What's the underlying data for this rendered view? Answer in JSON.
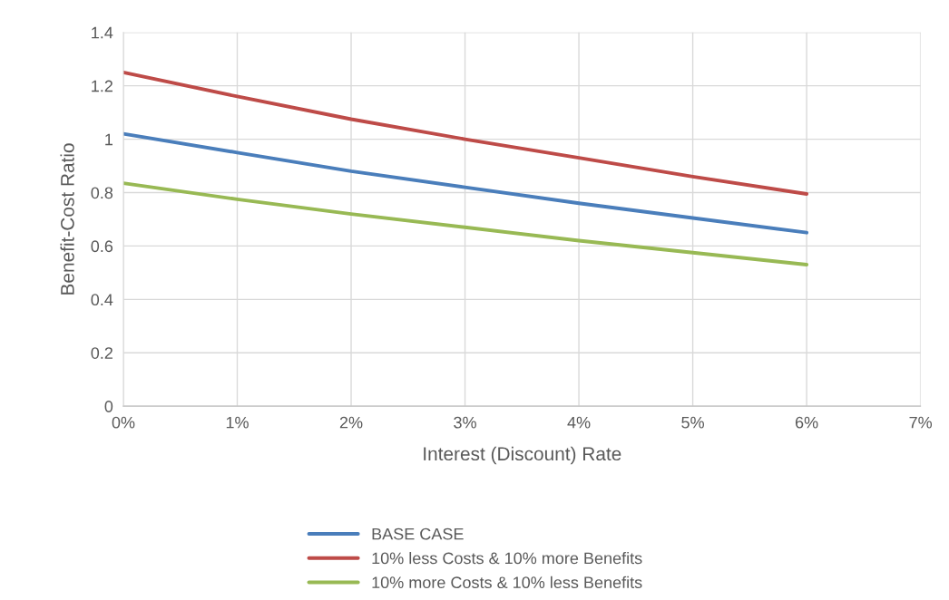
{
  "chart_data": {
    "type": "line",
    "xlabel": "Interest (Discount) Rate",
    "ylabel": "Benefit-Cost Ratio",
    "x": [
      0,
      1,
      2,
      3,
      4,
      5,
      6
    ],
    "series": [
      {
        "name": "BASE CASE",
        "color": "#4a7ebb",
        "values": [
          1.02,
          0.95,
          0.88,
          0.82,
          0.76,
          0.705,
          0.65
        ]
      },
      {
        "name": "10% less Costs & 10% more Benefits",
        "color": "#be4b48",
        "values": [
          1.25,
          1.16,
          1.075,
          1.0,
          0.93,
          0.86,
          0.795
        ]
      },
      {
        "name": "10% more Costs & 10% less Benefits",
        "color": "#98b954",
        "values": [
          0.835,
          0.775,
          0.72,
          0.67,
          0.62,
          0.575,
          0.53
        ]
      }
    ],
    "xlim": [
      0,
      7
    ],
    "xticks": [
      {
        "value": 0,
        "label": "0%"
      },
      {
        "value": 1,
        "label": "1%"
      },
      {
        "value": 2,
        "label": "2%"
      },
      {
        "value": 3,
        "label": "3%"
      },
      {
        "value": 4,
        "label": "4%"
      },
      {
        "value": 5,
        "label": "5%"
      },
      {
        "value": 6,
        "label": "6%"
      },
      {
        "value": 7,
        "label": "7%"
      }
    ],
    "ylim": [
      0,
      1.4
    ],
    "yticks": [
      0,
      0.2,
      0.4,
      0.6,
      0.8,
      1,
      1.2,
      1.4
    ],
    "grid": true,
    "legend": "bottom",
    "marker": "none",
    "line_style": "solid"
  }
}
